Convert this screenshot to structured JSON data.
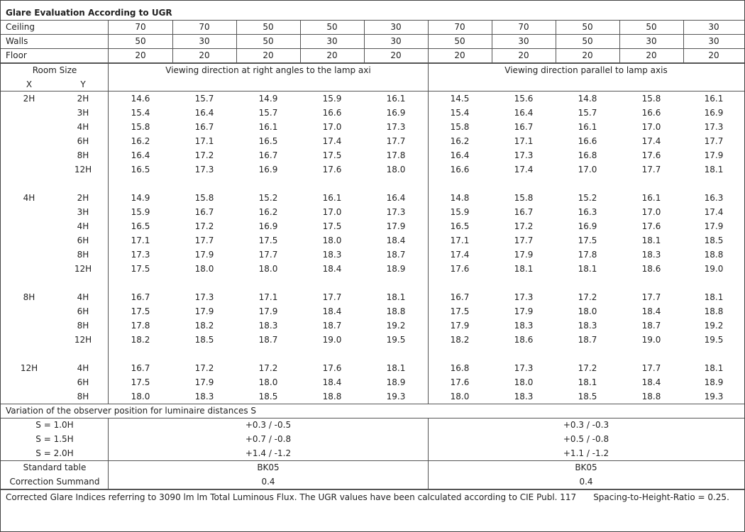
{
  "title": "Glare Evaluation According to UGR",
  "reflectances": [
    {
      "label": "Ceiling",
      "values": [
        "70",
        "70",
        "50",
        "50",
        "30",
        "70",
        "70",
        "50",
        "50",
        "30"
      ]
    },
    {
      "label": "Walls",
      "values": [
        "50",
        "30",
        "50",
        "30",
        "30",
        "50",
        "30",
        "50",
        "30",
        "30"
      ]
    },
    {
      "label": "Floor",
      "values": [
        "20",
        "20",
        "20",
        "20",
        "20",
        "20",
        "20",
        "20",
        "20",
        "20"
      ]
    }
  ],
  "room_size": {
    "label": "Room Size",
    "x": "X",
    "y": "Y"
  },
  "directions": [
    "Viewing direction at right angles to the lamp axi",
    "Viewing direction parallel to lamp axis"
  ],
  "groups": [
    {
      "x": "2H",
      "rows": [
        {
          "y": "2H",
          "values": [
            "14.6",
            "15.7",
            "14.9",
            "15.9",
            "16.1",
            "14.5",
            "15.6",
            "14.8",
            "15.8",
            "16.1"
          ]
        },
        {
          "y": "3H",
          "values": [
            "15.4",
            "16.4",
            "15.7",
            "16.6",
            "16.9",
            "15.4",
            "16.4",
            "15.7",
            "16.6",
            "16.9"
          ]
        },
        {
          "y": "4H",
          "values": [
            "15.8",
            "16.7",
            "16.1",
            "17.0",
            "17.3",
            "15.8",
            "16.7",
            "16.1",
            "17.0",
            "17.3"
          ]
        },
        {
          "y": "6H",
          "values": [
            "16.2",
            "17.1",
            "16.5",
            "17.4",
            "17.7",
            "16.2",
            "17.1",
            "16.6",
            "17.4",
            "17.7"
          ]
        },
        {
          "y": "8H",
          "values": [
            "16.4",
            "17.2",
            "16.7",
            "17.5",
            "17.8",
            "16.4",
            "17.3",
            "16.8",
            "17.6",
            "17.9"
          ]
        },
        {
          "y": "12H",
          "values": [
            "16.5",
            "17.3",
            "16.9",
            "17.6",
            "18.0",
            "16.6",
            "17.4",
            "17.0",
            "17.7",
            "18.1"
          ]
        }
      ]
    },
    {
      "x": "4H",
      "rows": [
        {
          "y": "2H",
          "values": [
            "14.9",
            "15.8",
            "15.2",
            "16.1",
            "16.4",
            "14.8",
            "15.8",
            "15.2",
            "16.1",
            "16.3"
          ]
        },
        {
          "y": "3H",
          "values": [
            "15.9",
            "16.7",
            "16.2",
            "17.0",
            "17.3",
            "15.9",
            "16.7",
            "16.3",
            "17.0",
            "17.4"
          ]
        },
        {
          "y": "4H",
          "values": [
            "16.5",
            "17.2",
            "16.9",
            "17.5",
            "17.9",
            "16.5",
            "17.2",
            "16.9",
            "17.6",
            "17.9"
          ]
        },
        {
          "y": "6H",
          "values": [
            "17.1",
            "17.7",
            "17.5",
            "18.0",
            "18.4",
            "17.1",
            "17.7",
            "17.5",
            "18.1",
            "18.5"
          ]
        },
        {
          "y": "8H",
          "values": [
            "17.3",
            "17.9",
            "17.7",
            "18.3",
            "18.7",
            "17.4",
            "17.9",
            "17.8",
            "18.3",
            "18.8"
          ]
        },
        {
          "y": "12H",
          "values": [
            "17.5",
            "18.0",
            "18.0",
            "18.4",
            "18.9",
            "17.6",
            "18.1",
            "18.1",
            "18.6",
            "19.0"
          ]
        }
      ]
    },
    {
      "x": "8H",
      "rows": [
        {
          "y": "4H",
          "values": [
            "16.7",
            "17.3",
            "17.1",
            "17.7",
            "18.1",
            "16.7",
            "17.3",
            "17.2",
            "17.7",
            "18.1"
          ]
        },
        {
          "y": "6H",
          "values": [
            "17.5",
            "17.9",
            "17.9",
            "18.4",
            "18.8",
            "17.5",
            "17.9",
            "18.0",
            "18.4",
            "18.8"
          ]
        },
        {
          "y": "8H",
          "values": [
            "17.8",
            "18.2",
            "18.3",
            "18.7",
            "19.2",
            "17.9",
            "18.3",
            "18.3",
            "18.7",
            "19.2"
          ]
        },
        {
          "y": "12H",
          "values": [
            "18.2",
            "18.5",
            "18.7",
            "19.0",
            "19.5",
            "18.2",
            "18.6",
            "18.7",
            "19.0",
            "19.5"
          ]
        }
      ]
    },
    {
      "x": "12H",
      "rows": [
        {
          "y": "4H",
          "values": [
            "16.7",
            "17.2",
            "17.2",
            "17.6",
            "18.1",
            "16.8",
            "17.3",
            "17.2",
            "17.7",
            "18.1"
          ]
        },
        {
          "y": "6H",
          "values": [
            "17.5",
            "17.9",
            "18.0",
            "18.4",
            "18.9",
            "17.6",
            "18.0",
            "18.1",
            "18.4",
            "18.9"
          ]
        },
        {
          "y": "8H",
          "values": [
            "18.0",
            "18.3",
            "18.5",
            "18.8",
            "19.3",
            "18.0",
            "18.3",
            "18.5",
            "18.8",
            "19.3"
          ]
        }
      ]
    }
  ],
  "variation": {
    "title": "Variation of the observer position for luminaire distances S",
    "rows": [
      {
        "label": "S = 1.0H",
        "values": [
          "+0.3 / -0.5",
          "+0.3 / -0.3"
        ]
      },
      {
        "label": "S = 1.5H",
        "values": [
          "+0.7 / -0.8",
          "+0.5 / -0.8"
        ]
      },
      {
        "label": "S = 2.0H",
        "values": [
          "+1.4 / -1.2",
          "+1.1 / -1.2"
        ]
      }
    ]
  },
  "summary": [
    {
      "label": "Standard table",
      "values": [
        "BK05",
        "BK05"
      ]
    },
    {
      "label": "Correction Summand",
      "values": [
        "0.4",
        "0.4"
      ]
    }
  ],
  "footer": {
    "note": "Corrected Glare Indices referring to 3090 lm lm Total Luminous Flux. The UGR values have been calculated according to CIE Publ. 117",
    "ratio": "Spacing-to-Height-Ratio = 0.25."
  }
}
